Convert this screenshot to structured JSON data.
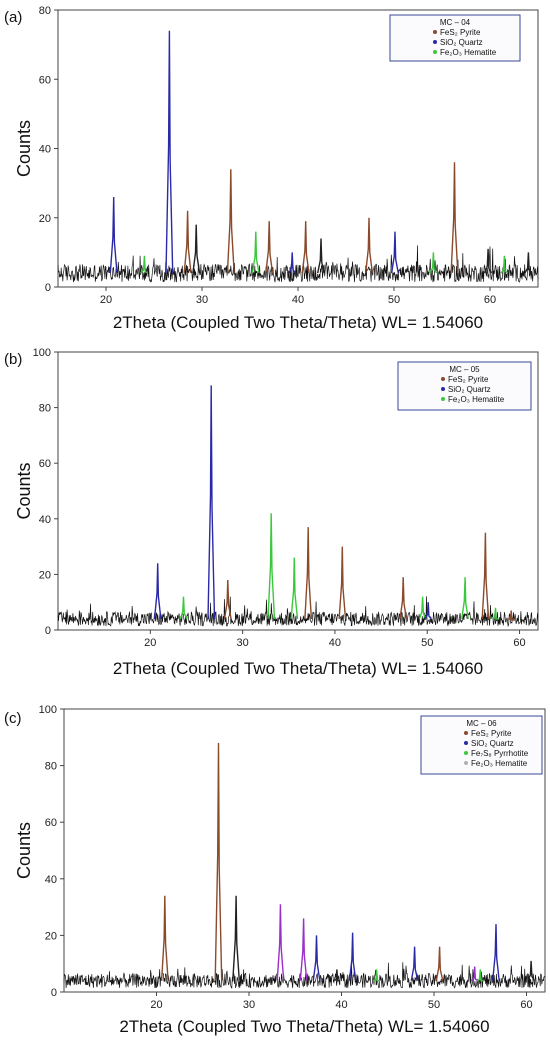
{
  "chart_data": [
    {
      "type": "line",
      "panel_label": "(a)",
      "xlabel": "2Theta (Coupled Two Theta/Theta) WL= 1.54060",
      "ylabel": "Counts",
      "xlim": [
        15,
        65
      ],
      "ylim": [
        0,
        80
      ],
      "x_ticks": [
        20,
        30,
        40,
        50,
        60
      ],
      "y_ticks": [
        0,
        20,
        40,
        60,
        80
      ],
      "legend": {
        "title": "MC – 04",
        "placement": "top-right",
        "entries": [
          {
            "label": "FeS₂  Pyrite",
            "color": "#8b4a2b"
          },
          {
            "label": "SiO₂  Quartz",
            "color": "#2a2aa8"
          },
          {
            "label": "Fe₂O₃ Hematite",
            "color": "#3cc83c"
          }
        ]
      },
      "baseline": 4,
      "peaks": [
        {
          "x": 20.8,
          "y": 26,
          "color": "#2a2aa8"
        },
        {
          "x": 24.0,
          "y": 9,
          "color": "#3cc83c"
        },
        {
          "x": 26.6,
          "y": 74,
          "color": "#2a2aa8"
        },
        {
          "x": 28.5,
          "y": 22,
          "color": "#8b4a2b"
        },
        {
          "x": 29.4,
          "y": 18,
          "color": "#222222"
        },
        {
          "x": 33.0,
          "y": 34,
          "color": "#8b4a2b"
        },
        {
          "x": 35.6,
          "y": 16,
          "color": "#3cc83c"
        },
        {
          "x": 37.0,
          "y": 19,
          "color": "#8b4a2b"
        },
        {
          "x": 39.4,
          "y": 10,
          "color": "#2a2aa8"
        },
        {
          "x": 40.8,
          "y": 19,
          "color": "#8b4a2b"
        },
        {
          "x": 42.4,
          "y": 14,
          "color": "#222222"
        },
        {
          "x": 47.4,
          "y": 20,
          "color": "#8b4a2b"
        },
        {
          "x": 50.1,
          "y": 16,
          "color": "#2a2aa8"
        },
        {
          "x": 54.1,
          "y": 10,
          "color": "#3cc83c"
        },
        {
          "x": 56.3,
          "y": 36,
          "color": "#8b4a2b"
        },
        {
          "x": 59.8,
          "y": 11,
          "color": "#222222"
        },
        {
          "x": 61.5,
          "y": 9,
          "color": "#3cc83c"
        },
        {
          "x": 64.0,
          "y": 10,
          "color": "#222222"
        }
      ]
    },
    {
      "type": "line",
      "panel_label": "(b)",
      "xlabel": "2Theta (Coupled Two Theta/Theta) WL= 1.54060",
      "ylabel": "Counts",
      "xlim": [
        10,
        62
      ],
      "ylim": [
        0,
        100
      ],
      "x_ticks": [
        20,
        30,
        40,
        50,
        60
      ],
      "y_ticks": [
        0,
        20,
        40,
        60,
        80,
        100
      ],
      "legend": {
        "title": "MC – 05",
        "placement": "top-right",
        "entries": [
          {
            "label": "FeS₂  Pyrite",
            "color": "#8b4a2b"
          },
          {
            "label": "SiO₂  Quartz",
            "color": "#2a2aa8"
          },
          {
            "label": "Fe₂O₃ Hematite",
            "color": "#3cc83c"
          }
        ]
      },
      "baseline": 4,
      "peaks": [
        {
          "x": 20.8,
          "y": 24,
          "color": "#2a2aa8"
        },
        {
          "x": 23.6,
          "y": 12,
          "color": "#3cc83c"
        },
        {
          "x": 26.6,
          "y": 88,
          "color": "#2a2aa8"
        },
        {
          "x": 28.4,
          "y": 18,
          "color": "#8b4a2b"
        },
        {
          "x": 33.1,
          "y": 42,
          "color": "#3cc83c"
        },
        {
          "x": 35.6,
          "y": 26,
          "color": "#3cc83c"
        },
        {
          "x": 37.1,
          "y": 37,
          "color": "#8b4a2b"
        },
        {
          "x": 40.8,
          "y": 30,
          "color": "#8b4a2b"
        },
        {
          "x": 47.4,
          "y": 19,
          "color": "#8b4a2b"
        },
        {
          "x": 49.5,
          "y": 12,
          "color": "#3cc83c"
        },
        {
          "x": 50.1,
          "y": 10,
          "color": "#2a2aa8"
        },
        {
          "x": 54.1,
          "y": 19,
          "color": "#3cc83c"
        },
        {
          "x": 56.3,
          "y": 35,
          "color": "#8b4a2b"
        },
        {
          "x": 57.4,
          "y": 8,
          "color": "#3cc83c"
        },
        {
          "x": 59.1,
          "y": 7,
          "color": "#8b4a2b"
        }
      ]
    },
    {
      "type": "line",
      "panel_label": "(c)",
      "xlabel": "2Theta (Coupled Two Theta/Theta) WL= 1.54060",
      "ylabel": "Counts",
      "xlim": [
        10,
        62
      ],
      "ylim": [
        0,
        100
      ],
      "x_ticks": [
        20,
        30,
        40,
        50,
        60
      ],
      "y_ticks": [
        0,
        20,
        40,
        60,
        80,
        100
      ],
      "legend": {
        "title": "MC – 06",
        "placement": "top-right",
        "entries": [
          {
            "label": "FeS₂  Pyrite",
            "color": "#8b4a2b"
          },
          {
            "label": "SiO₂  Quartz",
            "color": "#2a2aa8"
          },
          {
            "label": "Fe₇S₈ Pyrrhotite",
            "color": "#3cc83c"
          },
          {
            "label": "Fe₂O₃ Hematite",
            "color": "#b0b0b0"
          }
        ]
      },
      "baseline": 4,
      "peaks": [
        {
          "x": 20.9,
          "y": 34,
          "color": "#8b4a2b"
        },
        {
          "x": 26.7,
          "y": 88,
          "color": "#8b4a2b"
        },
        {
          "x": 28.6,
          "y": 34,
          "color": "#222222"
        },
        {
          "x": 33.4,
          "y": 31,
          "color": "#9b30c8"
        },
        {
          "x": 35.9,
          "y": 26,
          "color": "#9b30c8"
        },
        {
          "x": 37.3,
          "y": 20,
          "color": "#2a2aa8"
        },
        {
          "x": 39.5,
          "y": 8,
          "color": "#222222"
        },
        {
          "x": 41.2,
          "y": 21,
          "color": "#2a2aa8"
        },
        {
          "x": 43.8,
          "y": 8,
          "color": "#3cc83c"
        },
        {
          "x": 47.9,
          "y": 16,
          "color": "#2a2aa8"
        },
        {
          "x": 50.6,
          "y": 16,
          "color": "#8b4a2b"
        },
        {
          "x": 54.4,
          "y": 9,
          "color": "#9b30c8"
        },
        {
          "x": 55.0,
          "y": 8,
          "color": "#3cc83c"
        },
        {
          "x": 56.7,
          "y": 24,
          "color": "#2a2aa8"
        },
        {
          "x": 60.5,
          "y": 11,
          "color": "#222222"
        }
      ]
    }
  ]
}
